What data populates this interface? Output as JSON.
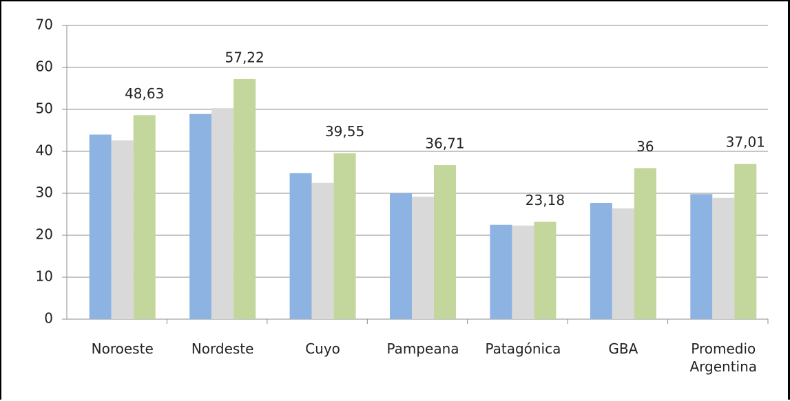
{
  "chart_data": {
    "type": "bar",
    "categories": [
      "Noroeste",
      "Nordeste",
      "Cuyo",
      "Pampeana",
      "Patagónica",
      "GBA",
      "Promedio Argentina"
    ],
    "series": [
      {
        "color": "#8db3e2",
        "values": [
          44,
          48.9,
          34.8,
          30,
          22.5,
          27.7,
          29.8
        ]
      },
      {
        "color": "#d9d9d9",
        "values": [
          42.6,
          50.3,
          32.5,
          29.2,
          22.3,
          26.4,
          28.9
        ]
      },
      {
        "color": "#c3d69b",
        "values": [
          48.63,
          57.22,
          39.55,
          36.71,
          23.18,
          36,
          37.01
        ],
        "value_labels": [
          "48,63",
          "57,22",
          "39,55",
          "36,71",
          "23,18",
          "36",
          "37,01"
        ]
      }
    ],
    "ylim": [
      0,
      70
    ],
    "yticks": [
      0,
      10,
      20,
      30,
      40,
      50,
      60,
      70
    ],
    "grid": true
  }
}
